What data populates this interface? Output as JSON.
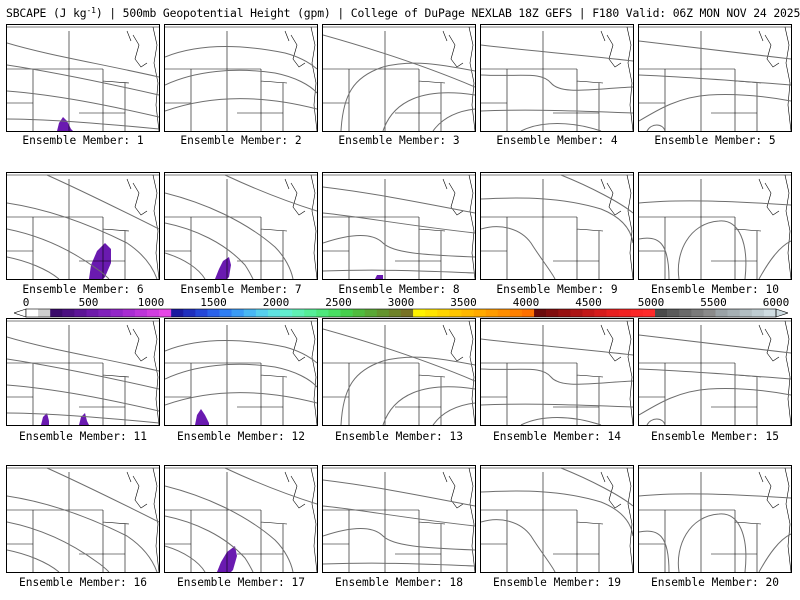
{
  "header": {
    "title_prefix": "SBCAPE (J kg",
    "title_exp": "-1",
    "title_suffix": ") | 500mb Geopotential Height (gpm) | College of DuPage NEXLAB 18Z GEFS | F180 Valid: 06Z MON NOV 24 2025"
  },
  "panels": [
    {
      "label": "Ensemble Member: 1",
      "cape": true
    },
    {
      "label": "Ensemble Member: 2",
      "cape": false
    },
    {
      "label": "Ensemble Member: 3",
      "cape": false
    },
    {
      "label": "Ensemble Member: 4",
      "cape": false
    },
    {
      "label": "Ensemble Member: 5",
      "cape": false
    },
    {
      "label": "Ensemble Member: 6",
      "cape": true
    },
    {
      "label": "Ensemble Member: 7",
      "cape": true
    },
    {
      "label": "Ensemble Member: 8",
      "cape": true
    },
    {
      "label": "Ensemble Member: 9",
      "cape": false
    },
    {
      "label": "Ensemble Member: 10",
      "cape": false
    },
    {
      "label": "Ensemble Member: 11",
      "cape": true
    },
    {
      "label": "Ensemble Member: 12",
      "cape": true
    },
    {
      "label": "Ensemble Member: 13",
      "cape": false
    },
    {
      "label": "Ensemble Member: 14",
      "cape": false
    },
    {
      "label": "Ensemble Member: 15",
      "cape": false
    },
    {
      "label": "Ensemble Member: 16",
      "cape": false
    },
    {
      "label": "Ensemble Member: 17",
      "cape": true
    },
    {
      "label": "Ensemble Member: 18",
      "cape": false
    },
    {
      "label": "Ensemble Member: 19",
      "cape": false
    },
    {
      "label": "Ensemble Member: 20",
      "cape": false
    }
  ],
  "colorbar": {
    "min": 0,
    "max": 6000,
    "ticks": [
      "0",
      "500",
      "1000",
      "1500",
      "2000",
      "2500",
      "3000",
      "3500",
      "4000",
      "4500",
      "5000",
      "5500",
      "6000"
    ],
    "colors": [
      "#ffffff",
      "#cfcfcf",
      "#3a0a6a",
      "#4b0f80",
      "#5c1496",
      "#6e1aaa",
      "#8020bb",
      "#9326c8",
      "#a82cd2",
      "#bd34da",
      "#d23de0",
      "#e646e6",
      "#1a1aa0",
      "#1f2fbe",
      "#2547d8",
      "#2b62ea",
      "#2e7ef4",
      "#3a9bf6",
      "#48b7f4",
      "#56cfee",
      "#5ee2e2",
      "#62efd0",
      "#5ff0b4",
      "#56ee98",
      "#4ee87c",
      "#48de62",
      "#46cf4c",
      "#50bc3e",
      "#5aa836",
      "#64942e",
      "#6e8228",
      "#787224",
      "#fff200",
      "#ffe400",
      "#ffd500",
      "#ffc600",
      "#ffb800",
      "#ffaa00",
      "#ff9c00",
      "#ff8e00",
      "#ff8000",
      "#ff7000",
      "#6a0a0a",
      "#800c0c",
      "#961010",
      "#ac1414",
      "#c21818",
      "#d61c1c",
      "#e82020",
      "#f22222",
      "#fa2626",
      "#ff2a2a",
      "#4a4a4a",
      "#5a5a5a",
      "#6a6a6a",
      "#7a7a7a",
      "#8a8a8a",
      "#9aa2a6",
      "#a6b0b4",
      "#b2bec2",
      "#bfcdd2",
      "#cfdde2"
    ]
  },
  "colors": {
    "state_lines": "#000000",
    "height_contours": "#6e6e6e",
    "cape_fill": "#6a1ab0"
  }
}
